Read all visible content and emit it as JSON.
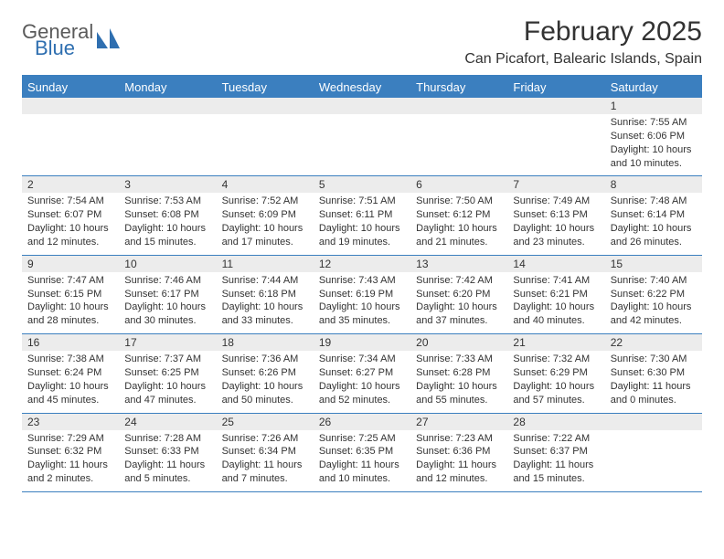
{
  "logo": {
    "part1": "General",
    "part2": "Blue"
  },
  "colors": {
    "brand_blue": "#3b7fbf",
    "header_bg": "#3b7fbf",
    "header_text": "#ffffff",
    "daynum_bg": "#ececec",
    "text": "#333333",
    "logo_gray": "#5a5a5a",
    "logo_blue": "#2f6fb0"
  },
  "title": "February 2025",
  "location": "Can Picafort, Balearic Islands, Spain",
  "day_names": [
    "Sunday",
    "Monday",
    "Tuesday",
    "Wednesday",
    "Thursday",
    "Friday",
    "Saturday"
  ],
  "weeks": [
    [
      null,
      null,
      null,
      null,
      null,
      null,
      {
        "n": "1",
        "sunrise": "Sunrise: 7:55 AM",
        "sunset": "Sunset: 6:06 PM",
        "daylight": "Daylight: 10 hours and 10 minutes."
      }
    ],
    [
      {
        "n": "2",
        "sunrise": "Sunrise: 7:54 AM",
        "sunset": "Sunset: 6:07 PM",
        "daylight": "Daylight: 10 hours and 12 minutes."
      },
      {
        "n": "3",
        "sunrise": "Sunrise: 7:53 AM",
        "sunset": "Sunset: 6:08 PM",
        "daylight": "Daylight: 10 hours and 15 minutes."
      },
      {
        "n": "4",
        "sunrise": "Sunrise: 7:52 AM",
        "sunset": "Sunset: 6:09 PM",
        "daylight": "Daylight: 10 hours and 17 minutes."
      },
      {
        "n": "5",
        "sunrise": "Sunrise: 7:51 AM",
        "sunset": "Sunset: 6:11 PM",
        "daylight": "Daylight: 10 hours and 19 minutes."
      },
      {
        "n": "6",
        "sunrise": "Sunrise: 7:50 AM",
        "sunset": "Sunset: 6:12 PM",
        "daylight": "Daylight: 10 hours and 21 minutes."
      },
      {
        "n": "7",
        "sunrise": "Sunrise: 7:49 AM",
        "sunset": "Sunset: 6:13 PM",
        "daylight": "Daylight: 10 hours and 23 minutes."
      },
      {
        "n": "8",
        "sunrise": "Sunrise: 7:48 AM",
        "sunset": "Sunset: 6:14 PM",
        "daylight": "Daylight: 10 hours and 26 minutes."
      }
    ],
    [
      {
        "n": "9",
        "sunrise": "Sunrise: 7:47 AM",
        "sunset": "Sunset: 6:15 PM",
        "daylight": "Daylight: 10 hours and 28 minutes."
      },
      {
        "n": "10",
        "sunrise": "Sunrise: 7:46 AM",
        "sunset": "Sunset: 6:17 PM",
        "daylight": "Daylight: 10 hours and 30 minutes."
      },
      {
        "n": "11",
        "sunrise": "Sunrise: 7:44 AM",
        "sunset": "Sunset: 6:18 PM",
        "daylight": "Daylight: 10 hours and 33 minutes."
      },
      {
        "n": "12",
        "sunrise": "Sunrise: 7:43 AM",
        "sunset": "Sunset: 6:19 PM",
        "daylight": "Daylight: 10 hours and 35 minutes."
      },
      {
        "n": "13",
        "sunrise": "Sunrise: 7:42 AM",
        "sunset": "Sunset: 6:20 PM",
        "daylight": "Daylight: 10 hours and 37 minutes."
      },
      {
        "n": "14",
        "sunrise": "Sunrise: 7:41 AM",
        "sunset": "Sunset: 6:21 PM",
        "daylight": "Daylight: 10 hours and 40 minutes."
      },
      {
        "n": "15",
        "sunrise": "Sunrise: 7:40 AM",
        "sunset": "Sunset: 6:22 PM",
        "daylight": "Daylight: 10 hours and 42 minutes."
      }
    ],
    [
      {
        "n": "16",
        "sunrise": "Sunrise: 7:38 AM",
        "sunset": "Sunset: 6:24 PM",
        "daylight": "Daylight: 10 hours and 45 minutes."
      },
      {
        "n": "17",
        "sunrise": "Sunrise: 7:37 AM",
        "sunset": "Sunset: 6:25 PM",
        "daylight": "Daylight: 10 hours and 47 minutes."
      },
      {
        "n": "18",
        "sunrise": "Sunrise: 7:36 AM",
        "sunset": "Sunset: 6:26 PM",
        "daylight": "Daylight: 10 hours and 50 minutes."
      },
      {
        "n": "19",
        "sunrise": "Sunrise: 7:34 AM",
        "sunset": "Sunset: 6:27 PM",
        "daylight": "Daylight: 10 hours and 52 minutes."
      },
      {
        "n": "20",
        "sunrise": "Sunrise: 7:33 AM",
        "sunset": "Sunset: 6:28 PM",
        "daylight": "Daylight: 10 hours and 55 minutes."
      },
      {
        "n": "21",
        "sunrise": "Sunrise: 7:32 AM",
        "sunset": "Sunset: 6:29 PM",
        "daylight": "Daylight: 10 hours and 57 minutes."
      },
      {
        "n": "22",
        "sunrise": "Sunrise: 7:30 AM",
        "sunset": "Sunset: 6:30 PM",
        "daylight": "Daylight: 11 hours and 0 minutes."
      }
    ],
    [
      {
        "n": "23",
        "sunrise": "Sunrise: 7:29 AM",
        "sunset": "Sunset: 6:32 PM",
        "daylight": "Daylight: 11 hours and 2 minutes."
      },
      {
        "n": "24",
        "sunrise": "Sunrise: 7:28 AM",
        "sunset": "Sunset: 6:33 PM",
        "daylight": "Daylight: 11 hours and 5 minutes."
      },
      {
        "n": "25",
        "sunrise": "Sunrise: 7:26 AM",
        "sunset": "Sunset: 6:34 PM",
        "daylight": "Daylight: 11 hours and 7 minutes."
      },
      {
        "n": "26",
        "sunrise": "Sunrise: 7:25 AM",
        "sunset": "Sunset: 6:35 PM",
        "daylight": "Daylight: 11 hours and 10 minutes."
      },
      {
        "n": "27",
        "sunrise": "Sunrise: 7:23 AM",
        "sunset": "Sunset: 6:36 PM",
        "daylight": "Daylight: 11 hours and 12 minutes."
      },
      {
        "n": "28",
        "sunrise": "Sunrise: 7:22 AM",
        "sunset": "Sunset: 6:37 PM",
        "daylight": "Daylight: 11 hours and 15 minutes."
      },
      null
    ]
  ]
}
